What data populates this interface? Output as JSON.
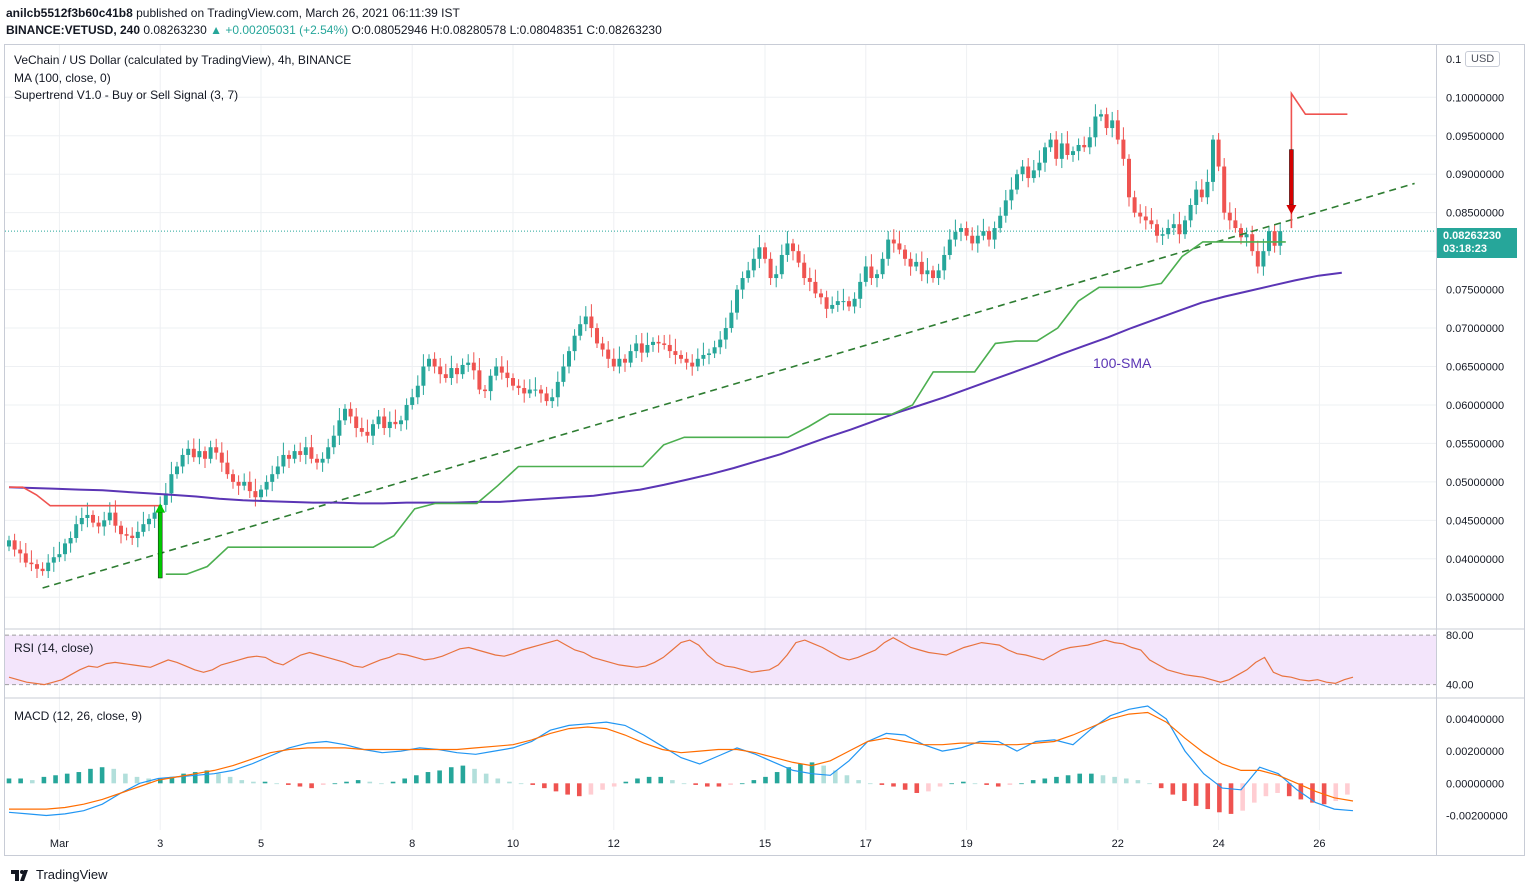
{
  "header": {
    "publisher": "anilcb5512f3b60c41b8",
    "published_text": "published on TradingView.com, March 26, 2021 06:11:39 IST",
    "symbol_line": "BINANCE:VETUSD, 240",
    "last": "0.08263230",
    "change": "▲ +0.00205031 (+2.54%)",
    "o": "O:0.08052946",
    "h": "H:0.08280578",
    "l": "L:0.08048351",
    "c": "C:0.08263230"
  },
  "legend": {
    "title": "VeChain / US Dollar (calculated by TradingView), 4h, BINANCE",
    "ma": "MA (100, close, 0)",
    "supertrend": "Supertrend V1.0 - Buy or Sell Signal (3, 7)",
    "rsi": "RSI (14, close)",
    "macd": "MACD (12, 26, close, 9)"
  },
  "axis": {
    "currency": "USD",
    "price_tag": "0.08263230",
    "countdown": "03:18:23",
    "rsi_ticks": [
      "80.00",
      "40.00"
    ],
    "macd_ticks": [
      "0.00400000",
      "0.00200000",
      "0.00000000",
      "-0.00200000"
    ]
  },
  "annotation": {
    "sma_label": "100-SMA"
  },
  "colors": {
    "up": "#26a69a",
    "down": "#ef5350",
    "ma": "#5b35b5",
    "st_up": "#4caf50",
    "st_down": "#ef5350",
    "rsi": "#e8733f",
    "macd": "#2196f3",
    "signal": "#ff6d00"
  },
  "footer": {
    "brand": "TradingView"
  },
  "chart_data": {
    "type": "candlestick",
    "title": "VeChain / US Dollar (calculated by TradingView), 4h, BINANCE",
    "ylim": [
      0.031,
      0.1068
    ],
    "yticks": [
      0.035,
      0.04,
      0.045,
      0.05,
      0.055,
      0.06,
      0.065,
      0.07,
      0.075,
      0.08,
      0.085,
      0.09,
      0.095,
      0.1
    ],
    "ytick_labels": [
      "0.03500000",
      "0.04000000",
      "0.04500000",
      "0.05000000",
      "0.05500000",
      "0.06000000",
      "0.06500000",
      "0.07000000",
      "0.07500000",
      "0.08000000",
      "0.08500000",
      "0.09000000",
      "0.09500000",
      "0.10000000"
    ],
    "top_partial_label": "0.1",
    "xticks": [
      {
        "label": "Mar",
        "bar": 9
      },
      {
        "label": "3",
        "bar": 27
      },
      {
        "label": "5",
        "bar": 45
      },
      {
        "label": "8",
        "bar": 72
      },
      {
        "label": "10",
        "bar": 90
      },
      {
        "label": "12",
        "bar": 108
      },
      {
        "label": "15",
        "bar": 135
      },
      {
        "label": "17",
        "bar": 153
      },
      {
        "label": "19",
        "bar": 171
      },
      {
        "label": "22",
        "bar": 198
      },
      {
        "label": "24",
        "bar": 216
      },
      {
        "label": "26",
        "bar": 234
      }
    ],
    "candle_closes": [
      0.0424,
      0.0412,
      0.0407,
      0.0395,
      0.0393,
      0.0387,
      0.0384,
      0.0395,
      0.0402,
      0.0406,
      0.042,
      0.0427,
      0.0445,
      0.0453,
      0.0457,
      0.0447,
      0.0442,
      0.045,
      0.046,
      0.0443,
      0.0432,
      0.043,
      0.0427,
      0.0435,
      0.0445,
      0.0452,
      0.046,
      0.047,
      0.0485,
      0.051,
      0.052,
      0.0535,
      0.0543,
      0.0532,
      0.054,
      0.053,
      0.0545,
      0.0538,
      0.0525,
      0.051,
      0.05,
      0.0495,
      0.05,
      0.0488,
      0.048,
      0.049,
      0.05,
      0.051,
      0.052,
      0.0535,
      0.053,
      0.054,
      0.0535,
      0.0545,
      0.053,
      0.0525,
      0.053,
      0.0545,
      0.056,
      0.058,
      0.0595,
      0.0585,
      0.057,
      0.0565,
      0.056,
      0.0575,
      0.0585,
      0.057,
      0.0578,
      0.0575,
      0.058,
      0.06,
      0.061,
      0.0625,
      0.065,
      0.066,
      0.065,
      0.064,
      0.0635,
      0.0648,
      0.064,
      0.0652,
      0.0655,
      0.0645,
      0.062,
      0.0618,
      0.0638,
      0.065,
      0.0642,
      0.0635,
      0.0625,
      0.0622,
      0.0615,
      0.062,
      0.062,
      0.0615,
      0.0605,
      0.061,
      0.063,
      0.065,
      0.067,
      0.069,
      0.0705,
      0.0715,
      0.07,
      0.068,
      0.0672,
      0.066,
      0.065,
      0.066,
      0.0655,
      0.067,
      0.068,
      0.0668,
      0.0678,
      0.0682,
      0.068,
      0.0678,
      0.067,
      0.0665,
      0.066,
      0.0655,
      0.065,
      0.066,
      0.0665,
      0.0667,
      0.0675,
      0.0685,
      0.07,
      0.072,
      0.075,
      0.0765,
      0.0775,
      0.079,
      0.0805,
      0.079,
      0.0765,
      0.077,
      0.0795,
      0.081,
      0.08,
      0.0785,
      0.0765,
      0.076,
      0.0745,
      0.074,
      0.0725,
      0.073,
      0.0735,
      0.0735,
      0.0728,
      0.0738,
      0.076,
      0.078,
      0.0765,
      0.077,
      0.079,
      0.0815,
      0.081,
      0.0802,
      0.079,
      0.078,
      0.0786,
      0.077,
      0.0775,
      0.0765,
      0.0775,
      0.0795,
      0.0815,
      0.0825,
      0.083,
      0.082,
      0.081,
      0.082,
      0.0826,
      0.0815,
      0.083,
      0.0846,
      0.0866,
      0.088,
      0.09,
      0.091,
      0.0895,
      0.0905,
      0.0915,
      0.0935,
      0.0945,
      0.092,
      0.094,
      0.0925,
      0.093,
      0.0938,
      0.0935,
      0.0948,
      0.0975,
      0.0978,
      0.096,
      0.097,
      0.0945,
      0.092,
      0.087,
      0.085,
      0.0845,
      0.084,
      0.0835,
      0.082,
      0.0822,
      0.083,
      0.0835,
      0.0822,
      0.084,
      0.086,
      0.088,
      0.087,
      0.089,
      0.0945,
      0.091,
      0.085,
      0.084,
      0.083,
      0.0818,
      0.0822,
      0.08,
      0.078,
      0.08,
      0.0826,
      0.0807,
      0.0826
    ],
    "ma100": [
      0.0493,
      0.0492,
      0.0491,
      0.049,
      0.0489,
      0.0487,
      0.0485,
      0.0483,
      0.0481,
      0.0478,
      0.0476,
      0.0475,
      0.0474,
      0.0473,
      0.0473,
      0.0472,
      0.0472,
      0.0473,
      0.0473,
      0.0473,
      0.0474,
      0.0474,
      0.0476,
      0.0478,
      0.048,
      0.0482,
      0.0486,
      0.049,
      0.0496,
      0.0503,
      0.051,
      0.0518,
      0.0527,
      0.0536,
      0.0547,
      0.0558,
      0.0568,
      0.0579,
      0.059,
      0.06,
      0.061,
      0.0621,
      0.0632,
      0.0643,
      0.0654,
      0.0666,
      0.0677,
      0.0688,
      0.07,
      0.0711,
      0.0722,
      0.0733,
      0.0741,
      0.0748,
      0.0755,
      0.0762,
      0.0768,
      0.0772
    ],
    "supertrend_up": [
      0.038,
      0.038,
      0.039,
      0.0415,
      0.0415,
      0.0415,
      0.0415,
      0.0415,
      0.0415,
      0.0415,
      0.0415,
      0.043,
      0.0465,
      0.0472,
      0.0472,
      0.0472,
      0.0495,
      0.052,
      0.052,
      0.052,
      0.052,
      0.052,
      0.052,
      0.052,
      0.0548,
      0.0558,
      0.0558,
      0.0558,
      0.0558,
      0.0558,
      0.0558,
      0.0572,
      0.0588,
      0.0588,
      0.0588,
      0.0588,
      0.06,
      0.0643,
      0.0643,
      0.0643,
      0.068,
      0.0683,
      0.0683,
      0.07,
      0.0735,
      0.0753,
      0.0753,
      0.0753,
      0.0758,
      0.0793,
      0.0812,
      0.0812,
      0.0812,
      0.0812,
      0.0812
    ],
    "supertrend_down": [
      0.0493,
      0.0493,
      0.0483,
      0.0469,
      0.0469,
      0.0469,
      0.0469,
      0.0469,
      0.0469,
      0.0469,
      0.0469,
      0.0469
    ],
    "supertrend_down_end": [
      0.1005,
      0.0978,
      0.0978,
      0.0978,
      0.0978
    ],
    "trendline": {
      "from": [
        6,
        0.0362
      ],
      "to": [
        251,
        0.0888
      ]
    },
    "signals": [
      {
        "type": "buy",
        "bar": 27
      },
      {
        "type": "sell",
        "bar": 229
      }
    ],
    "rsi_ylim": [
      30,
      85
    ],
    "rsi_band": [
      40,
      80
    ],
    "rsi": [
      46,
      44,
      42,
      41,
      40,
      42,
      44,
      48,
      52,
      55,
      54,
      57,
      58,
      57,
      56,
      55,
      54,
      57,
      60,
      58,
      55,
      52,
      50,
      52,
      56,
      58,
      60,
      62,
      63,
      62,
      58,
      56,
      60,
      64,
      66,
      64,
      62,
      60,
      58,
      55,
      54,
      57,
      60,
      62,
      65,
      64,
      62,
      60,
      61,
      63,
      66,
      69,
      70,
      68,
      66,
      64,
      63,
      65,
      68,
      70,
      72,
      74,
      76,
      72,
      68,
      66,
      62,
      60,
      58,
      56,
      55,
      54,
      55,
      58,
      62,
      68,
      74,
      76,
      72,
      64,
      58,
      55,
      54,
      52,
      50,
      51,
      52,
      56,
      64,
      74,
      76,
      73,
      70,
      66,
      62,
      60,
      62,
      65,
      68,
      74,
      78,
      74,
      70,
      68,
      66,
      65,
      64,
      67,
      70,
      72,
      74,
      73,
      72,
      68,
      65,
      64,
      62,
      60,
      64,
      68,
      70,
      71,
      72,
      74,
      76,
      74,
      73,
      70,
      68,
      60,
      56,
      52,
      50,
      48,
      47,
      46,
      44,
      42,
      44,
      48,
      52,
      58,
      62,
      50,
      47,
      46,
      44,
      43,
      44,
      42,
      41,
      44,
      46
    ],
    "macd_ylim": [
      -0.0029,
      0.0053
    ],
    "macd": [
      -0.0018,
      -0.0019,
      -0.002,
      -0.0019,
      -0.0017,
      -0.0013,
      -0.0006,
      0.0,
      0.0003,
      0.0004,
      0.0005,
      0.0006,
      0.0008,
      0.0012,
      0.0017,
      0.0022,
      0.0025,
      0.0026,
      0.0024,
      0.0021,
      0.0019,
      0.002,
      0.0022,
      0.0021,
      0.0019,
      0.0018,
      0.002,
      0.0022,
      0.0026,
      0.0033,
      0.0036,
      0.0037,
      0.0038,
      0.0036,
      0.003,
      0.0023,
      0.0016,
      0.0012,
      0.0017,
      0.0022,
      0.0018,
      0.0013,
      0.0008,
      0.0006,
      0.0005,
      0.0014,
      0.0026,
      0.0031,
      0.003,
      0.0024,
      0.002,
      0.0022,
      0.0026,
      0.0026,
      0.002,
      0.0026,
      0.0027,
      0.0024,
      0.0034,
      0.0042,
      0.0046,
      0.0048,
      0.004,
      0.002,
      0.0006,
      -0.0003,
      -0.0004,
      0.001,
      0.0006,
      -0.0004,
      -0.0012,
      -0.0016,
      -0.0017
    ],
    "signal": [
      -0.0016,
      -0.0016,
      -0.0016,
      -0.0015,
      -0.0013,
      -0.001,
      -0.0006,
      -0.0002,
      0.0002,
      0.0004,
      0.0006,
      0.0008,
      0.0011,
      0.0015,
      0.0019,
      0.0021,
      0.0022,
      0.0022,
      0.0022,
      0.0021,
      0.0021,
      0.0021,
      0.0021,
      0.0021,
      0.0021,
      0.0022,
      0.0023,
      0.0024,
      0.0027,
      0.0031,
      0.0034,
      0.0035,
      0.0034,
      0.003,
      0.0025,
      0.0021,
      0.0019,
      0.002,
      0.0021,
      0.0021,
      0.0019,
      0.0016,
      0.0013,
      0.0011,
      0.0014,
      0.002,
      0.0026,
      0.0028,
      0.0026,
      0.0024,
      0.0024,
      0.0025,
      0.0025,
      0.0024,
      0.0024,
      0.0025,
      0.0026,
      0.003,
      0.0035,
      0.004,
      0.0043,
      0.0044,
      0.0038,
      0.0028,
      0.0019,
      0.0012,
      0.0008,
      0.0008,
      0.0005,
      0.0,
      -0.0005,
      -0.0009,
      -0.0011
    ],
    "macd_hist": [
      0.0003,
      0.0003,
      0.0002,
      0.0004,
      0.0005,
      0.0006,
      0.0007,
      0.0009,
      0.001,
      0.0009,
      0.0006,
      0.0004,
      0.0003,
      0.0003,
      0.0004,
      0.0006,
      0.0007,
      0.0008,
      0.0006,
      0.0004,
      0.0002,
      0.0001,
      0.0001,
      0.0,
      -0.0001,
      -0.0002,
      -0.0003,
      -0.0001,
      0.0,
      0.0001,
      0.0002,
      0.0001,
      0.0,
      0.0001,
      0.0003,
      0.0005,
      0.0007,
      0.0008,
      0.001,
      0.0011,
      0.0009,
      0.0006,
      0.0003,
      0.0001,
      0.0,
      -0.0001,
      -0.0003,
      -0.0005,
      -0.0007,
      -0.0008,
      -0.0007,
      -0.0004,
      -0.0002,
      0.0001,
      0.0003,
      0.0004,
      0.0004,
      0.0002,
      0.0,
      -0.0001,
      -0.0002,
      -0.0002,
      -0.0001,
      0.0,
      0.0002,
      0.0004,
      0.0007,
      0.001,
      0.0012,
      0.0013,
      0.0011,
      0.0008,
      0.0005,
      0.0002,
      0.0,
      -0.0001,
      -0.0002,
      -0.0004,
      -0.0006,
      -0.0005,
      -0.0002,
      0.0,
      0.0001,
      0.0,
      -0.0001,
      -0.0002,
      -0.0001,
      0.0,
      0.0002,
      0.0003,
      0.0004,
      0.0005,
      0.0006,
      0.0006,
      0.0005,
      0.0004,
      0.0003,
      0.0002,
      0.0,
      -0.0003,
      -0.0007,
      -0.0011,
      -0.0014,
      -0.0016,
      -0.0018,
      -0.0019,
      -0.0017,
      -0.0012,
      -0.0008,
      -0.0006,
      -0.0008,
      -0.001,
      -0.0012,
      -0.0013,
      -0.0011,
      -0.0007
    ]
  }
}
